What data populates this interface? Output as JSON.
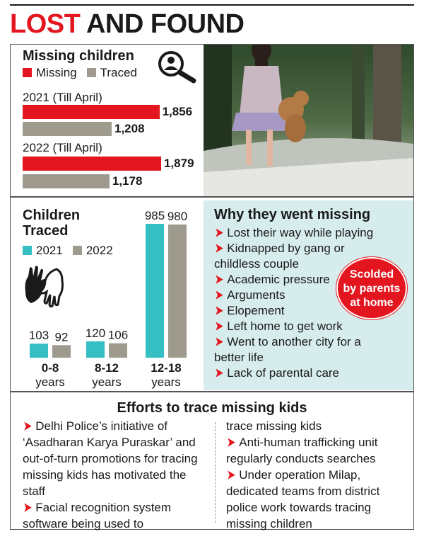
{
  "headline": {
    "part1": "LOST",
    "part2": "AND FOUND"
  },
  "missing_children": {
    "title": "Missing children",
    "legend": {
      "missing": "Missing",
      "traced": "Traced"
    },
    "groups": [
      {
        "label": "2021 (Till April)",
        "missing_label": "1,856",
        "traced_label": "1,208"
      },
      {
        "label": "2022 (Till April)",
        "missing_label": "1,879",
        "traced_label": "1,178"
      }
    ]
  },
  "children_traced": {
    "title_line1": "Children",
    "title_line2": "Traced",
    "legend": {
      "y2021": "2021",
      "y2022": "2022"
    },
    "groups": [
      {
        "label": "0-8",
        "sub": "years",
        "v2021": "103",
        "v2022": "92"
      },
      {
        "label": "8-12",
        "sub": "years",
        "v2021": "120",
        "v2022": "106"
      },
      {
        "label": "12-18",
        "sub": "years",
        "v2021": "985",
        "v2022": "980"
      }
    ]
  },
  "why": {
    "title": "Why they went missing",
    "items": [
      "Lost their way while playing",
      "Kidnapped by gang or childless couple",
      "Academic pressure",
      "Arguments",
      "Elopement",
      "Left home to get work",
      "Went to another city for a better life",
      "Lack of parental care"
    ],
    "badge": [
      "Scolded",
      "by parents",
      "at home"
    ]
  },
  "efforts": {
    "title": "Efforts to trace missing kids",
    "col1": [
      "Delhi Police’s initiative of ‘Asadharan Karya Puraskar’ and out-of-turn promotions for tracing missing kids has motivated the staff",
      "Facial recognition system software being used to"
    ],
    "col2_continuation": "trace missing kids",
    "col2": [
      "Anti-human trafficking unit regularly conducts searches",
      "Under operation Milap, dedicated teams from district police work towards tracing missing children"
    ]
  },
  "colors": {
    "red": "#e3161f",
    "grey": "#9e9a8e",
    "teal": "#35bfc3",
    "panel": "#d7ecec"
  },
  "chart_data": [
    {
      "type": "bar",
      "orientation": "horizontal",
      "title": "Missing children",
      "categories": [
        "2021 (Till April)",
        "2022 (Till April)"
      ],
      "series": [
        {
          "name": "Missing",
          "values": [
            1856,
            1879
          ],
          "color": "#e3161f"
        },
        {
          "name": "Traced",
          "values": [
            1208,
            1178
          ],
          "color": "#9e9a8e"
        }
      ]
    },
    {
      "type": "bar",
      "title": "Children Traced",
      "categories": [
        "0-8 years",
        "8-12 years",
        "12-18 years"
      ],
      "series": [
        {
          "name": "2021",
          "values": [
            103,
            120,
            985
          ],
          "color": "#35bfc3"
        },
        {
          "name": "2022",
          "values": [
            92,
            106,
            980
          ],
          "color": "#9e9a8e"
        }
      ]
    }
  ]
}
